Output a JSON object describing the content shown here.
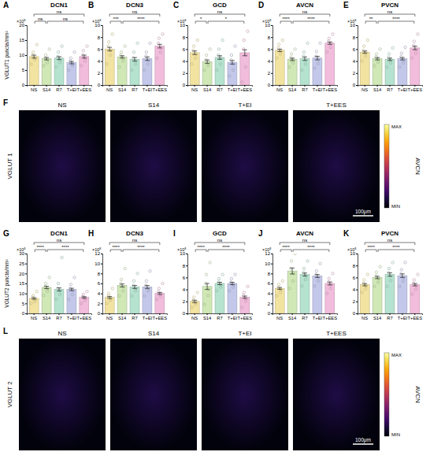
{
  "chart_data": [
    {
      "type": "bar",
      "letter": "A",
      "title": "DCN1",
      "y_label": "VGLUT1 puncta/mm²",
      "y_unit": "×10⁵",
      "categories": [
        "NS",
        "S14",
        "R7",
        "T+EI",
        "T+EES"
      ],
      "values": [
        9.5,
        8.8,
        9.0,
        7.5,
        9.5
      ],
      "errors": [
        0.5,
        0.4,
        0.5,
        0.4,
        0.5
      ],
      "points": [
        [
          7,
          8.5,
          9,
          10,
          11,
          13.5
        ],
        [
          6.5,
          7.5,
          8.5,
          9,
          10,
          12
        ],
        [
          6,
          7.5,
          8.5,
          9.5,
          11,
          13
        ],
        [
          5,
          6.5,
          7,
          8,
          9,
          11
        ],
        [
          6.5,
          8,
          9,
          10,
          11.5,
          13
        ]
      ],
      "colors": [
        "#f3e3a1",
        "#cfe8b5",
        "#b5e3cf",
        "#c3c8ea",
        "#f2bcdc"
      ],
      "ylim": [
        0,
        20
      ],
      "yticks": [
        0,
        5,
        10,
        15,
        20
      ],
      "comparisons": [
        {
          "pair": [
            0,
            1
          ],
          "label": "ns"
        },
        {
          "pair": [
            1,
            4
          ],
          "label": "ns"
        },
        {
          "pair": [
            0,
            4
          ],
          "label": "ns"
        }
      ]
    },
    {
      "type": "bar",
      "letter": "B",
      "title": "DCN3",
      "y_unit": "×10⁵",
      "categories": [
        "NS",
        "S14",
        "R7",
        "T+EI",
        "T+EES"
      ],
      "values": [
        6.0,
        4.7,
        4.3,
        4.4,
        6.5
      ],
      "errors": [
        0.3,
        0.2,
        0.3,
        0.3,
        0.3
      ],
      "points": [
        [
          3.5,
          5,
          5.8,
          6.5,
          7.2,
          8.5
        ],
        [
          3,
          4,
          4.5,
          5,
          5.5,
          6.5
        ],
        [
          2.5,
          3.5,
          4,
          4.5,
          5.5,
          7
        ],
        [
          2.5,
          3.5,
          4.2,
          4.8,
          5.5,
          7
        ],
        [
          4.5,
          5.5,
          6.2,
          7,
          7.8,
          8.5
        ]
      ],
      "colors": [
        "#f3e3a1",
        "#cfe8b5",
        "#b5e3cf",
        "#c3c8ea",
        "#f2bcdc"
      ],
      "ylim": [
        0,
        10
      ],
      "yticks": [
        0,
        2,
        4,
        6,
        8,
        10
      ],
      "comparisons": [
        {
          "pair": [
            0,
            1
          ],
          "label": "***"
        },
        {
          "pair": [
            1,
            4
          ],
          "label": "****"
        },
        {
          "pair": [
            0,
            4
          ],
          "label": "ns"
        }
      ]
    },
    {
      "type": "bar",
      "letter": "C",
      "title": "GCD",
      "y_unit": "×10⁵",
      "categories": [
        "NS",
        "S14",
        "R7",
        "T+EI",
        "T+EES"
      ],
      "values": [
        5.4,
        3.9,
        4.6,
        3.8,
        5.4
      ],
      "errors": [
        0.3,
        0.3,
        0.3,
        0.3,
        0.5
      ],
      "points": [
        [
          3.5,
          4.5,
          5.2,
          5.8,
          6.5,
          7.5
        ],
        [
          2.5,
          3.2,
          3.8,
          4.2,
          5,
          6
        ],
        [
          2.5,
          3.5,
          4.5,
          5,
          6,
          7.5
        ],
        [
          1.5,
          2.5,
          3.5,
          4.2,
          5,
          6.5
        ],
        [
          0.5,
          3,
          5,
          6,
          7.5,
          9
        ]
      ],
      "colors": [
        "#f3e3a1",
        "#cfe8b5",
        "#b5e3cf",
        "#c3c8ea",
        "#f2bcdc"
      ],
      "ylim": [
        0,
        10
      ],
      "yticks": [
        0,
        2,
        4,
        6,
        8,
        10
      ],
      "comparisons": [
        {
          "pair": [
            0,
            1
          ],
          "label": "*"
        },
        {
          "pair": [
            1,
            4
          ],
          "label": "*"
        },
        {
          "pair": [
            0,
            4
          ],
          "label": "ns"
        }
      ]
    },
    {
      "type": "bar",
      "letter": "D",
      "title": "AVCN",
      "y_unit": "×10⁵",
      "categories": [
        "NS",
        "S14",
        "R7",
        "T+EI",
        "T+EES"
      ],
      "values": [
        5.8,
        4.3,
        4.4,
        4.5,
        7.0
      ],
      "errors": [
        0.2,
        0.2,
        0.3,
        0.3,
        0.2
      ],
      "points": [
        [
          4.5,
          5.2,
          5.7,
          6.2,
          6.8,
          7.5
        ],
        [
          3,
          3.7,
          4.2,
          4.6,
          5.2,
          6
        ],
        [
          2.5,
          3.5,
          4.2,
          4.8,
          5.5,
          7
        ],
        [
          2.8,
          3.6,
          4.3,
          4.8,
          5.6,
          7
        ],
        [
          5.5,
          6.3,
          6.9,
          7.3,
          7.8,
          8.5
        ]
      ],
      "colors": [
        "#f3e3a1",
        "#cfe8b5",
        "#b5e3cf",
        "#c3c8ea",
        "#f2bcdc"
      ],
      "ylim": [
        0,
        10
      ],
      "yticks": [
        0,
        2,
        4,
        6,
        8,
        10
      ],
      "comparisons": [
        {
          "pair": [
            0,
            1
          ],
          "label": "****"
        },
        {
          "pair": [
            1,
            4
          ],
          "label": "****"
        },
        {
          "pair": [
            0,
            4
          ],
          "label": "ns"
        }
      ]
    },
    {
      "type": "bar",
      "letter": "E",
      "title": "PVCN",
      "y_unit": "×10⁵",
      "categories": [
        "NS",
        "S14",
        "R7",
        "T+EI",
        "T+EES"
      ],
      "values": [
        5.5,
        4.4,
        4.3,
        4.4,
        6.2
      ],
      "errors": [
        0.2,
        0.2,
        0.2,
        0.2,
        0.3
      ],
      "points": [
        [
          4,
          4.8,
          5.4,
          5.8,
          6.5,
          7.5
        ],
        [
          3.2,
          3.8,
          4.3,
          4.7,
          5.2,
          6
        ],
        [
          3,
          3.7,
          4.2,
          4.6,
          5.2,
          6.2
        ],
        [
          3,
          3.7,
          4.2,
          4.7,
          5.3,
          6.3
        ],
        [
          4.5,
          5.3,
          6,
          6.6,
          7.3,
          8.5
        ]
      ],
      "colors": [
        "#f3e3a1",
        "#cfe8b5",
        "#b5e3cf",
        "#c3c8ea",
        "#f2bcdc"
      ],
      "ylim": [
        0,
        10
      ],
      "yticks": [
        0,
        2,
        4,
        6,
        8,
        10
      ],
      "comparisons": [
        {
          "pair": [
            0,
            1
          ],
          "label": "**"
        },
        {
          "pair": [
            1,
            4
          ],
          "label": "****"
        },
        {
          "pair": [
            0,
            4
          ],
          "label": "ns"
        }
      ]
    },
    {
      "type": "bar",
      "letter": "G",
      "title": "DCN1",
      "y_label": "VGLUT2 puncta/mm²",
      "y_unit": "×10⁵",
      "categories": [
        "NS",
        "S14",
        "R7",
        "T+EI",
        "T+EES"
      ],
      "values": [
        7.5,
        13,
        12,
        12,
        8
      ],
      "errors": [
        0.4,
        0.6,
        0.8,
        0.6,
        0.4
      ],
      "points": [
        [
          5,
          6,
          7,
          8,
          9,
          11
        ],
        [
          9,
          11,
          12.5,
          13.5,
          15,
          18
        ],
        [
          7,
          9.5,
          11.5,
          12.5,
          15,
          28
        ],
        [
          7,
          9.5,
          11.5,
          12.5,
          14.5,
          18
        ],
        [
          5,
          6.5,
          7.5,
          8.5,
          9.5,
          11
        ]
      ],
      "colors": [
        "#f3e3a1",
        "#cfe8b5",
        "#b5e3cf",
        "#c3c8ea",
        "#f2bcdc"
      ],
      "ylim": [
        0,
        30
      ],
      "yticks": [
        0,
        5,
        10,
        15,
        20,
        25,
        30
      ],
      "comparisons": [
        {
          "pair": [
            0,
            1
          ],
          "label": "****"
        },
        {
          "pair": [
            1,
            4
          ],
          "label": "****"
        },
        {
          "pair": [
            0,
            4
          ],
          "label": "ns"
        }
      ]
    },
    {
      "type": "bar",
      "letter": "H",
      "title": "DCN3",
      "y_unit": "×10⁵",
      "categories": [
        "NS",
        "S14",
        "R7",
        "T+EI",
        "T+EES"
      ],
      "values": [
        3.2,
        5.6,
        5.3,
        5.3,
        4.0
      ],
      "errors": [
        0.2,
        0.3,
        0.3,
        0.3,
        0.2
      ],
      "points": [
        [
          2,
          2.6,
          3,
          3.5,
          4,
          5
        ],
        [
          3.5,
          4.5,
          5.3,
          6,
          6.8,
          9
        ],
        [
          3.5,
          4.5,
          5,
          5.6,
          6.5,
          8
        ],
        [
          3.5,
          4.5,
          5,
          5.6,
          6.5,
          8.5
        ],
        [
          2.8,
          3.4,
          3.9,
          4.3,
          5,
          6
        ]
      ],
      "colors": [
        "#f3e3a1",
        "#cfe8b5",
        "#b5e3cf",
        "#c3c8ea",
        "#f2bcdc"
      ],
      "ylim": [
        0,
        12
      ],
      "yticks": [
        0,
        2,
        4,
        6,
        8,
        10,
        12
      ],
      "comparisons": [
        {
          "pair": [
            0,
            1
          ],
          "label": "****"
        },
        {
          "pair": [
            1,
            4
          ],
          "label": "****"
        },
        {
          "pair": [
            0,
            4
          ],
          "label": "ns"
        }
      ]
    },
    {
      "type": "bar",
      "letter": "I",
      "title": "GCD",
      "y_unit": "×10⁵",
      "categories": [
        "NS",
        "S14",
        "R7",
        "T+EI",
        "T+EES"
      ],
      "values": [
        2.0,
        4.5,
        5.0,
        5.0,
        2.7
      ],
      "errors": [
        0.2,
        0.5,
        0.2,
        0.2,
        0.2
      ],
      "points": [
        [
          1,
          1.5,
          1.8,
          2.2,
          2.7,
          3.5
        ],
        [
          1.5,
          3,
          4,
          5,
          6.5,
          8.5
        ],
        [
          3.8,
          4.4,
          4.8,
          5.2,
          5.8,
          6.5
        ],
        [
          3.8,
          4.4,
          4.8,
          5.2,
          5.8,
          6.5
        ],
        [
          1,
          2,
          2.5,
          3,
          3.5,
          4.5
        ]
      ],
      "colors": [
        "#f3e3a1",
        "#cfe8b5",
        "#b5e3cf",
        "#c3c8ea",
        "#f2bcdc"
      ],
      "ylim": [
        0,
        10
      ],
      "yticks": [
        0,
        2,
        4,
        6,
        8,
        10
      ],
      "comparisons": [
        {
          "pair": [
            0,
            1
          ],
          "label": "****"
        },
        {
          "pair": [
            1,
            4
          ],
          "label": "****"
        },
        {
          "pair": [
            0,
            4
          ],
          "label": "ns"
        }
      ]
    },
    {
      "type": "bar",
      "letter": "J",
      "title": "AVCN",
      "y_unit": "×10⁵",
      "categories": [
        "NS",
        "S14",
        "R7",
        "T+EI",
        "T+EES"
      ],
      "values": [
        5.0,
        8.5,
        7.8,
        7.5,
        6.0
      ],
      "errors": [
        0.2,
        0.6,
        0.3,
        0.3,
        0.3
      ],
      "points": [
        [
          3.5,
          4.2,
          4.8,
          5.2,
          5.8,
          6.5
        ],
        [
          5,
          6.5,
          8,
          9,
          10.5,
          12
        ],
        [
          5.5,
          6.8,
          7.5,
          8.2,
          9,
          10.5
        ],
        [
          5.5,
          6.5,
          7.3,
          7.8,
          8.5,
          10
        ],
        [
          4,
          5,
          5.8,
          6.3,
          7,
          8
        ]
      ],
      "colors": [
        "#f3e3a1",
        "#cfe8b5",
        "#b5e3cf",
        "#c3c8ea",
        "#f2bcdc"
      ],
      "ylim": [
        0,
        12
      ],
      "yticks": [
        0,
        2,
        4,
        6,
        8,
        10,
        12
      ],
      "comparisons": [
        {
          "pair": [
            0,
            1
          ],
          "label": "****"
        },
        {
          "pair": [
            1,
            4
          ],
          "label": "****"
        },
        {
          "pair": [
            0,
            4
          ],
          "label": "ns"
        }
      ]
    },
    {
      "type": "bar",
      "letter": "K",
      "title": "PVCN",
      "y_unit": "×10⁵",
      "categories": [
        "NS",
        "S14",
        "R7",
        "T+EI",
        "T+EES"
      ],
      "values": [
        4.8,
        6.0,
        6.5,
        6.3,
        4.8
      ],
      "errors": [
        0.2,
        0.2,
        0.3,
        0.3,
        0.2
      ],
      "points": [
        [
          3.5,
          4.1,
          4.6,
          5,
          5.6,
          6.5
        ],
        [
          4.5,
          5.2,
          5.8,
          6.3,
          6.9,
          7.8
        ],
        [
          4.5,
          5.5,
          6.3,
          6.8,
          7.5,
          8.5
        ],
        [
          4.5,
          5.4,
          6,
          6.6,
          7.3,
          8.5
        ],
        [
          3.2,
          4,
          4.6,
          5,
          5.6,
          6.5
        ]
      ],
      "colors": [
        "#f3e3a1",
        "#cfe8b5",
        "#b5e3cf",
        "#c3c8ea",
        "#f2bcdc"
      ],
      "ylim": [
        0,
        10
      ],
      "yticks": [
        0,
        2,
        4,
        6,
        8,
        10
      ],
      "comparisons": [
        {
          "pair": [
            0,
            1
          ],
          "label": "****"
        },
        {
          "pair": [
            1,
            4
          ],
          "label": "****"
        },
        {
          "pair": [
            0,
            4
          ],
          "label": "ns"
        }
      ]
    }
  ],
  "images": [
    {
      "letter": "F",
      "titles": [
        "NS",
        "S14",
        "T+EI",
        "T+EES"
      ],
      "stain": "VGLUT 1",
      "region": "AVCN",
      "scale_bar": "100μm",
      "colorbar": {
        "max": "MAX",
        "min": "MIN"
      }
    },
    {
      "letter": "L",
      "titles": [
        "NS",
        "S14",
        "T+EI",
        "T+EES"
      ],
      "stain": "VGLUT 2",
      "region": "AVCN",
      "scale_bar": "100μm",
      "colorbar": {
        "max": "MAX",
        "min": "MIN"
      }
    }
  ]
}
